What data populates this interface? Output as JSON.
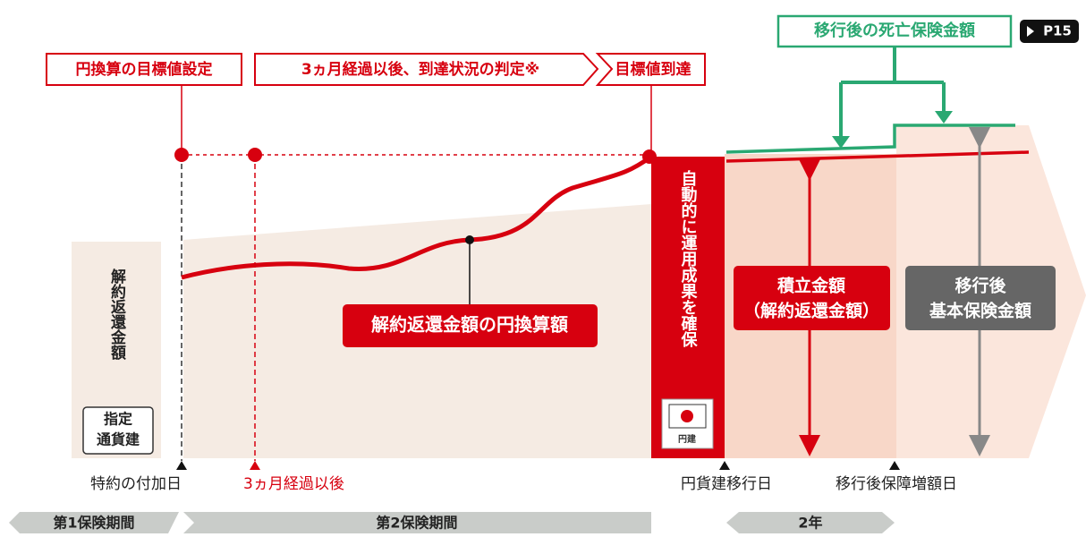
{
  "header": {
    "death_benefit": "移行後の死亡保険金額",
    "page_ref": "P15"
  },
  "steps": [
    "円換算の目標値設定",
    "3ヵ月経過以後、到達状況の判定※",
    "目標値到達"
  ],
  "left_axis": {
    "label": "解約返還金額",
    "currency_lines": [
      "指定",
      "通貨建"
    ]
  },
  "curve_label": "解約返還金額の円換算額",
  "column": {
    "label": "自動的に運用成果を確保",
    "flag_label": "円建"
  },
  "boxes": {
    "accumulated": [
      "積立金額",
      "（解約返還金額）"
    ],
    "basic": [
      "移行後",
      "基本保険金額"
    ]
  },
  "timeline": [
    "特約の付加日",
    "3ヵ月経過以後",
    "円貨建移行日",
    "移行後保障増額日"
  ],
  "periods": [
    "第1保険期間",
    "第2保険期間",
    "2年"
  ]
}
